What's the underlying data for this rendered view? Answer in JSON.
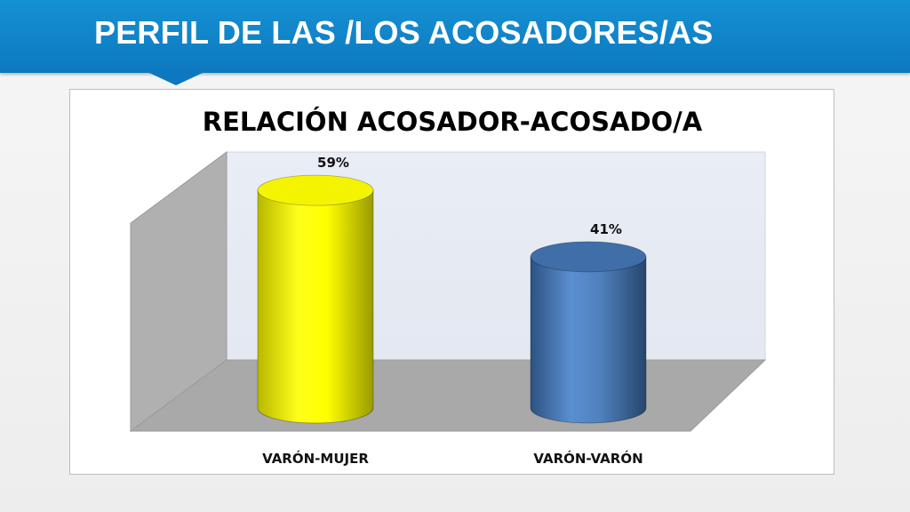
{
  "slide": {
    "title": "PERFIL DE LAS /LOS ACOSADORES/AS"
  },
  "colors": {
    "header": "#0d78bf",
    "bar_yellow": "#ffff00",
    "bar_blue": "#4f81bd"
  },
  "chart_data": {
    "type": "bar",
    "style": "3d-cylinder",
    "title": "RELACIÓN ACOSADOR-ACOSADO/A",
    "categories": [
      "VARÓN-MUJER",
      "VARÓN-VARÓN"
    ],
    "values": [
      59,
      41
    ],
    "data_labels": [
      "59%",
      "41%"
    ],
    "unit": "%",
    "ylim": [
      0,
      60
    ],
    "grid": false,
    "legend": "none",
    "bar_colors": [
      "#ffff00",
      "#4f81bd"
    ]
  }
}
